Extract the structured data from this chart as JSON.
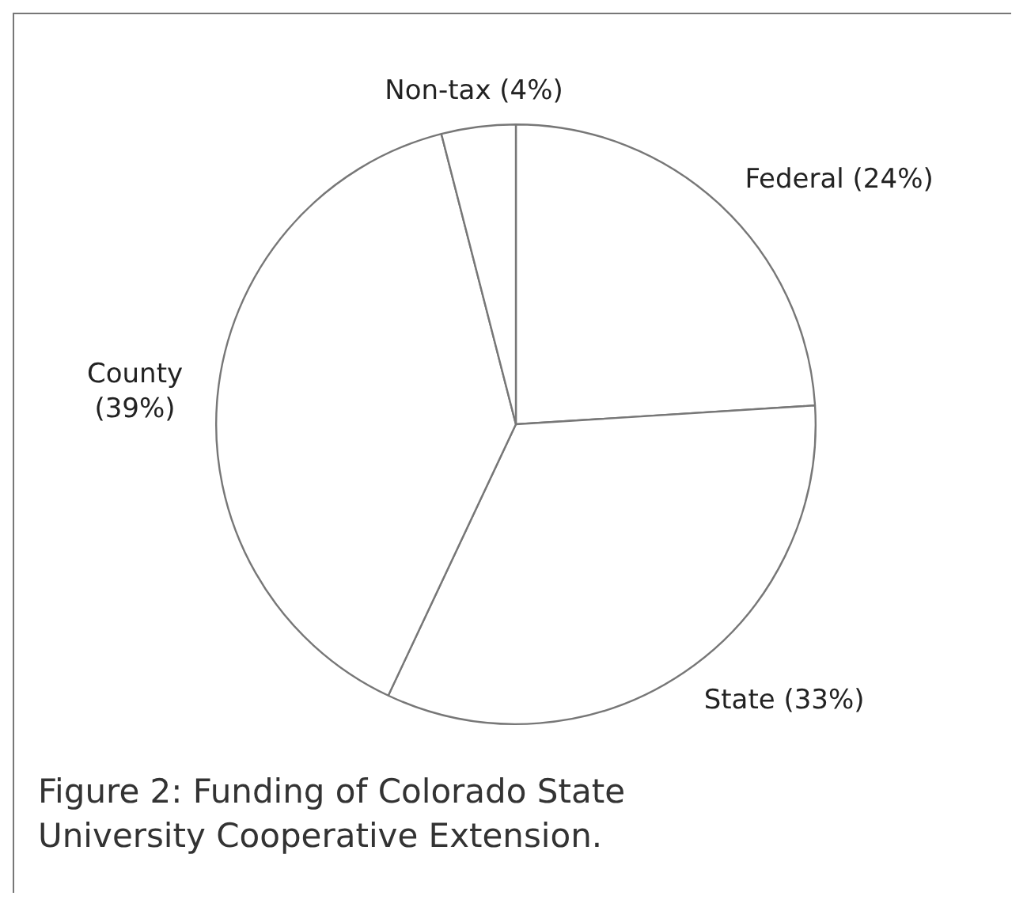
{
  "chart_data": {
    "type": "pie",
    "title": "Figure 2: Funding of Colorado State University Cooperative Extension.",
    "categories": [
      "Federal",
      "State",
      "County",
      "Non-tax"
    ],
    "values": [
      24,
      33,
      39,
      4
    ],
    "value_labels": [
      "(24%)",
      "(33%)",
      "(39%)",
      "(4%)"
    ],
    "colors": [
      "#ffffff",
      "#ffffff",
      "#ffffff",
      "#ffffff"
    ],
    "legend": false
  }
}
